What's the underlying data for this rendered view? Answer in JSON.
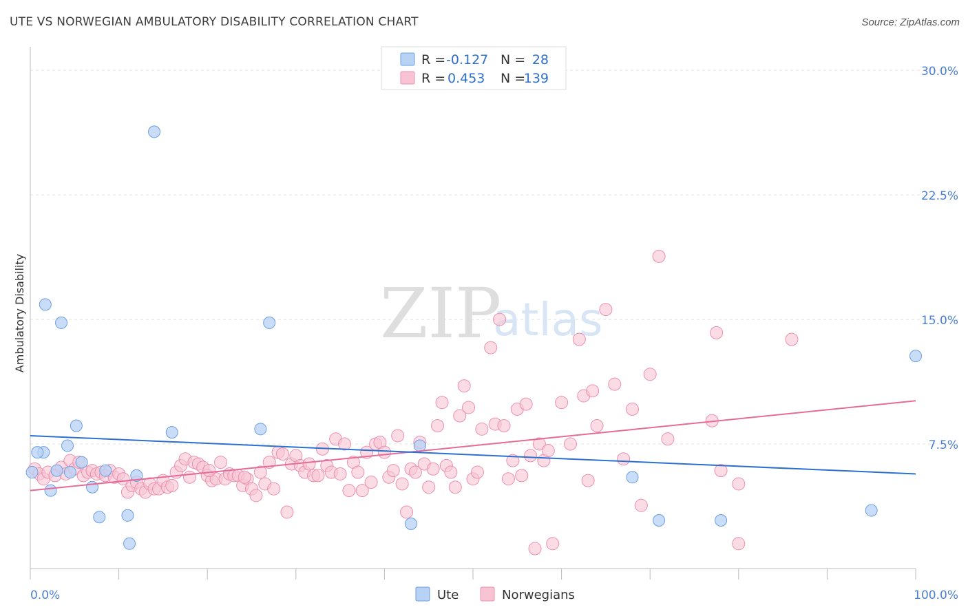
{
  "title": "UTE VS NORWEGIAN AMBULATORY DISABILITY CORRELATION CHART",
  "source": "Source: ZipAtlas.com",
  "watermark": {
    "zip": "ZIP",
    "atlas": "atlas"
  },
  "colors": {
    "ute_fill": "#b8d2f5",
    "ute_stroke": "#6a9ee0",
    "ute_line": "#2b6fd1",
    "nor_fill": "#f8c4d4",
    "nor_stroke": "#ea8fae",
    "nor_line": "#e56b98",
    "axis_label": "#4a7fd0",
    "grid": "#e3e3e3"
  },
  "legend": {
    "rows": [
      {
        "r_label": "R =",
        "r_value": "-0.127",
        "n_label": "N =",
        "n_value": "28"
      },
      {
        "r_label": "R =",
        "r_value": "0.453",
        "n_label": "N =",
        "n_value": "139"
      }
    ]
  },
  "bottom_legend": [
    "Ute",
    "Norwegians"
  ],
  "chart_data": {
    "type": "scatter",
    "title": "UTE VS NORWEGIAN AMBULATORY DISABILITY CORRELATION CHART",
    "xlabel": "",
    "ylabel": "Ambulatory Disability",
    "xlim": [
      0,
      100
    ],
    "ylim": [
      0,
      31
    ],
    "y_ticks": [
      7.5,
      15.0,
      22.5,
      30.0
    ],
    "y_tick_labels": [
      "7.5%",
      "15.0%",
      "22.5%",
      "30.0%"
    ],
    "x_tick_labels": [
      "0.0%",
      "100.0%"
    ],
    "grid": true,
    "legend_position": "top-center",
    "series": [
      {
        "name": "Ute",
        "r": -0.127,
        "n": 28,
        "trend": {
          "x0": 0,
          "y0": 8.0,
          "x1": 100,
          "y1": 5.7
        },
        "points": [
          [
            0.2,
            5.8
          ],
          [
            1.5,
            7.0
          ],
          [
            1.7,
            15.9
          ],
          [
            3.5,
            14.8
          ],
          [
            2.3,
            4.7
          ],
          [
            4.2,
            7.4
          ],
          [
            5.2,
            8.6
          ],
          [
            5.8,
            6.4
          ],
          [
            7.0,
            4.9
          ],
          [
            7.8,
            3.1
          ],
          [
            8.5,
            5.9
          ],
          [
            11.0,
            3.2
          ],
          [
            11.2,
            1.5
          ],
          [
            12.0,
            5.6
          ],
          [
            14.0,
            26.3
          ],
          [
            16.0,
            8.2
          ],
          [
            26.0,
            8.4
          ],
          [
            27.0,
            14.8
          ],
          [
            43.0,
            2.7
          ],
          [
            44.0,
            7.4
          ],
          [
            68.0,
            5.5
          ],
          [
            71.0,
            2.9
          ],
          [
            78.0,
            2.9
          ],
          [
            95.0,
            3.5
          ],
          [
            100.0,
            12.8
          ],
          [
            0.8,
            7.0
          ],
          [
            4.5,
            5.8
          ],
          [
            3.0,
            5.9
          ]
        ]
      },
      {
        "name": "Norwegians",
        "r": 0.453,
        "n": 139,
        "trend": {
          "x0": 0,
          "y0": 4.7,
          "x1": 100,
          "y1": 10.1
        },
        "points": [
          [
            0.5,
            6.0
          ],
          [
            1.0,
            5.7
          ],
          [
            1.5,
            5.4
          ],
          [
            2.0,
            5.8
          ],
          [
            2.8,
            5.6
          ],
          [
            3.5,
            6.1
          ],
          [
            4.0,
            5.7
          ],
          [
            4.5,
            6.5
          ],
          [
            5.0,
            6.0
          ],
          [
            5.5,
            6.4
          ],
          [
            6.0,
            5.6
          ],
          [
            6.5,
            5.8
          ],
          [
            7.0,
            5.9
          ],
          [
            7.5,
            5.7
          ],
          [
            8.0,
            5.8
          ],
          [
            8.5,
            5.6
          ],
          [
            9.0,
            5.9
          ],
          [
            9.5,
            5.5
          ],
          [
            10.0,
            5.7
          ],
          [
            10.5,
            5.4
          ],
          [
            11.0,
            4.6
          ],
          [
            11.5,
            5.0
          ],
          [
            12.0,
            5.2
          ],
          [
            12.5,
            4.8
          ],
          [
            13.0,
            4.6
          ],
          [
            13.5,
            5.1
          ],
          [
            14.0,
            4.8
          ],
          [
            14.5,
            4.8
          ],
          [
            15.0,
            5.3
          ],
          [
            15.5,
            4.9
          ],
          [
            16.0,
            5.0
          ],
          [
            16.5,
            5.8
          ],
          [
            17.0,
            6.2
          ],
          [
            17.5,
            6.6
          ],
          [
            18.0,
            5.5
          ],
          [
            18.5,
            6.4
          ],
          [
            19.0,
            6.3
          ],
          [
            19.5,
            6.1
          ],
          [
            20.0,
            5.6
          ],
          [
            20.5,
            5.3
          ],
          [
            21.0,
            5.4
          ],
          [
            21.5,
            6.4
          ],
          [
            22.0,
            5.4
          ],
          [
            22.5,
            5.7
          ],
          [
            23.0,
            5.6
          ],
          [
            23.5,
            5.6
          ],
          [
            24.0,
            5.0
          ],
          [
            24.5,
            5.4
          ],
          [
            25.0,
            4.8
          ],
          [
            25.5,
            4.4
          ],
          [
            26.0,
            5.8
          ],
          [
            26.5,
            5.1
          ],
          [
            27.0,
            6.4
          ],
          [
            27.5,
            4.8
          ],
          [
            28.0,
            7.0
          ],
          [
            28.5,
            6.9
          ],
          [
            29.0,
            3.4
          ],
          [
            29.5,
            6.3
          ],
          [
            30.0,
            6.8
          ],
          [
            30.5,
            6.2
          ],
          [
            31.0,
            5.8
          ],
          [
            31.5,
            6.3
          ],
          [
            32.0,
            5.6
          ],
          [
            32.5,
            5.6
          ],
          [
            33.0,
            7.2
          ],
          [
            33.5,
            6.2
          ],
          [
            34.0,
            5.8
          ],
          [
            34.5,
            7.8
          ],
          [
            35.0,
            5.7
          ],
          [
            35.5,
            7.5
          ],
          [
            36.0,
            4.7
          ],
          [
            36.5,
            6.4
          ],
          [
            37.0,
            5.8
          ],
          [
            37.5,
            4.7
          ],
          [
            38.0,
            7.0
          ],
          [
            38.5,
            5.2
          ],
          [
            39.0,
            7.5
          ],
          [
            39.5,
            7.6
          ],
          [
            40.0,
            7.0
          ],
          [
            40.5,
            5.5
          ],
          [
            41.0,
            5.9
          ],
          [
            41.5,
            8.0
          ],
          [
            42.0,
            5.1
          ],
          [
            42.5,
            3.4
          ],
          [
            43.0,
            6.0
          ],
          [
            43.5,
            5.8
          ],
          [
            44.0,
            7.6
          ],
          [
            44.5,
            6.3
          ],
          [
            45.0,
            4.9
          ],
          [
            45.5,
            6.0
          ],
          [
            46.0,
            8.6
          ],
          [
            46.5,
            10.0
          ],
          [
            47.0,
            6.2
          ],
          [
            47.5,
            5.8
          ],
          [
            48.0,
            4.9
          ],
          [
            48.5,
            9.2
          ],
          [
            49.0,
            11.0
          ],
          [
            49.5,
            9.7
          ],
          [
            50.0,
            5.4
          ],
          [
            50.5,
            5.8
          ],
          [
            51.0,
            8.4
          ],
          [
            52.0,
            13.3
          ],
          [
            52.5,
            8.7
          ],
          [
            53.0,
            15.0
          ],
          [
            53.5,
            8.6
          ],
          [
            54.0,
            5.4
          ],
          [
            54.5,
            6.5
          ],
          [
            55.0,
            9.6
          ],
          [
            56.0,
            9.9
          ],
          [
            56.5,
            6.8
          ],
          [
            57.0,
            1.2
          ],
          [
            57.5,
            7.5
          ],
          [
            58.0,
            6.5
          ],
          [
            58.5,
            7.1
          ],
          [
            59.0,
            1.5
          ],
          [
            60.0,
            10.0
          ],
          [
            61.0,
            7.5
          ],
          [
            62.0,
            13.8
          ],
          [
            62.5,
            10.4
          ],
          [
            63.0,
            5.3
          ],
          [
            63.5,
            10.7
          ],
          [
            64.0,
            8.6
          ],
          [
            65.0,
            15.6
          ],
          [
            66.0,
            11.1
          ],
          [
            67.0,
            6.6
          ],
          [
            68.0,
            9.6
          ],
          [
            69.0,
            3.8
          ],
          [
            70.0,
            11.7
          ],
          [
            71.0,
            18.8
          ],
          [
            72.0,
            7.8
          ],
          [
            77.0,
            8.9
          ],
          [
            77.5,
            14.2
          ],
          [
            78.0,
            5.9
          ],
          [
            80.0,
            5.1
          ],
          [
            86.0,
            13.8
          ],
          [
            80.0,
            1.5
          ],
          [
            55.5,
            5.6
          ],
          [
            24.2,
            5.5
          ],
          [
            20.2,
            5.9
          ]
        ]
      }
    ]
  }
}
